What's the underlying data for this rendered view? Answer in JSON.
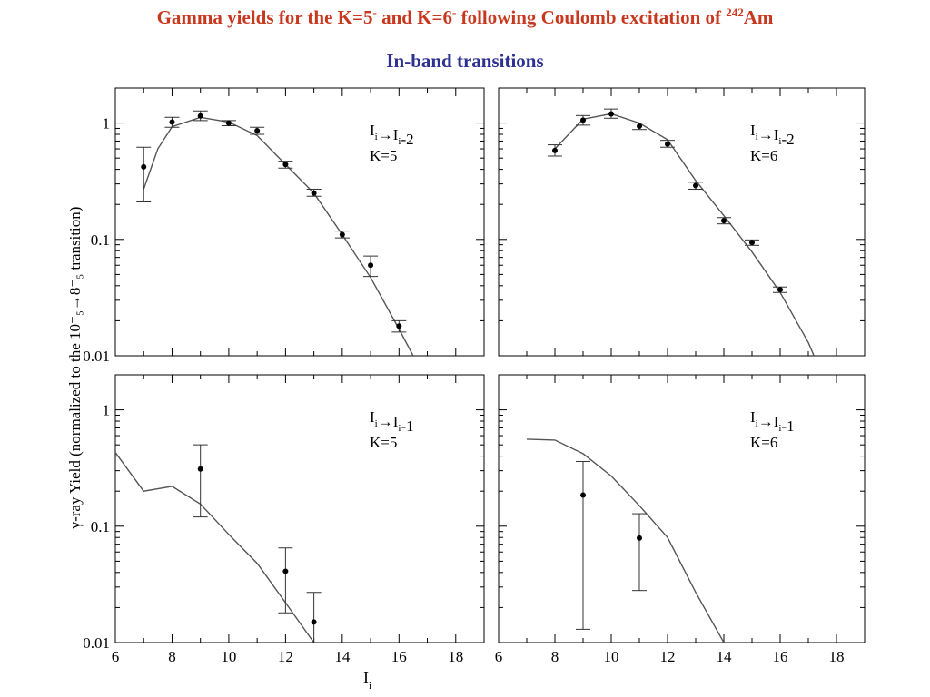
{
  "title": {
    "part1": "Gamma yields for the K=5",
    "sup1": "-",
    "part2": " and K=6",
    "sup2": "-",
    "part3": " following Coulomb excitation of ",
    "sup3": "242",
    "part4": "Am"
  },
  "subtitle": "In-band transitions",
  "axes": {
    "ylabel": "γ-ray Yield (normalized to the 10⁻₅→8⁻₅ transition)",
    "xlabel_main": "I",
    "xlabel_sub": "i",
    "x_ticks": [
      "6",
      "8",
      "10",
      "12",
      "14",
      "16",
      "18"
    ],
    "y_ticks": [
      "0.01",
      "0.1",
      "1"
    ]
  },
  "colors": {
    "title": "#c8381e",
    "subtitle": "#2e3192",
    "line": "#555555",
    "point": "#000000"
  },
  "chart_data": [
    {
      "type": "line",
      "panel": "top-left",
      "label": {
        "line1": "Ii→Ii-2",
        "line2": "K=5"
      },
      "xlim": [
        6,
        19
      ],
      "ylim": [
        0.01,
        2
      ],
      "yscale": "log",
      "theory": {
        "x": [
          7,
          7.5,
          8,
          9,
          10,
          11,
          12,
          13,
          14,
          15,
          16,
          16.5
        ],
        "y": [
          0.27,
          0.6,
          0.93,
          1.12,
          1.02,
          0.78,
          0.44,
          0.25,
          0.11,
          0.047,
          0.017,
          0.01
        ]
      },
      "data": [
        {
          "x": 7,
          "y": 0.42,
          "lo": 0.21,
          "hi": 0.62
        },
        {
          "x": 8,
          "y": 1.02,
          "lo": 0.92,
          "hi": 1.12
        },
        {
          "x": 9,
          "y": 1.15,
          "lo": 1.05,
          "hi": 1.27
        },
        {
          "x": 10,
          "y": 1.0,
          "lo": 0.95,
          "hi": 1.05
        },
        {
          "x": 11,
          "y": 0.86,
          "lo": 0.8,
          "hi": 0.92
        },
        {
          "x": 12,
          "y": 0.44,
          "lo": 0.41,
          "hi": 0.47
        },
        {
          "x": 13,
          "y": 0.25,
          "lo": 0.235,
          "hi": 0.27
        },
        {
          "x": 14,
          "y": 0.11,
          "lo": 0.103,
          "hi": 0.118
        },
        {
          "x": 15,
          "y": 0.06,
          "lo": 0.048,
          "hi": 0.072
        },
        {
          "x": 16,
          "y": 0.018,
          "lo": 0.016,
          "hi": 0.02
        }
      ]
    },
    {
      "type": "line",
      "panel": "top-right",
      "label": {
        "line1": "Ii→Ii-2",
        "line2": "K=6"
      },
      "xlim": [
        6,
        19
      ],
      "ylim": [
        0.01,
        2
      ],
      "yscale": "log",
      "theory": {
        "x": [
          8,
          9,
          10,
          11,
          12,
          13,
          14,
          15,
          16,
          17,
          17.2
        ],
        "y": [
          0.6,
          1.08,
          1.2,
          1.0,
          0.72,
          0.32,
          0.16,
          0.078,
          0.035,
          0.013,
          0.01
        ]
      },
      "data": [
        {
          "x": 8,
          "y": 0.58,
          "lo": 0.52,
          "hi": 0.65
        },
        {
          "x": 9,
          "y": 1.06,
          "lo": 0.96,
          "hi": 1.16
        },
        {
          "x": 10,
          "y": 1.2,
          "lo": 1.1,
          "hi": 1.32
        },
        {
          "x": 11,
          "y": 0.94,
          "lo": 0.88,
          "hi": 1.0
        },
        {
          "x": 12,
          "y": 0.66,
          "lo": 0.62,
          "hi": 0.71
        },
        {
          "x": 13,
          "y": 0.29,
          "lo": 0.27,
          "hi": 0.31
        },
        {
          "x": 14,
          "y": 0.145,
          "lo": 0.136,
          "hi": 0.154
        },
        {
          "x": 15,
          "y": 0.094,
          "lo": 0.089,
          "hi": 0.099
        },
        {
          "x": 16,
          "y": 0.037,
          "lo": 0.035,
          "hi": 0.039
        }
      ]
    },
    {
      "type": "line",
      "panel": "bottom-left",
      "label": {
        "line1": "Ii→Ii-1",
        "line2": "K=5"
      },
      "xlim": [
        6,
        19
      ],
      "ylim": [
        0.01,
        2
      ],
      "yscale": "log",
      "theory": {
        "x": [
          6,
          7,
          8,
          9,
          10,
          11,
          12,
          13
        ],
        "y": [
          0.43,
          0.2,
          0.22,
          0.155,
          0.085,
          0.048,
          0.022,
          0.01
        ]
      },
      "data": [
        {
          "x": 9,
          "y": 0.31,
          "lo": 0.12,
          "hi": 0.5
        },
        {
          "x": 12,
          "y": 0.041,
          "lo": 0.018,
          "hi": 0.065
        },
        {
          "x": 13,
          "y": 0.015,
          "lo": 0.005,
          "hi": 0.027
        }
      ]
    },
    {
      "type": "line",
      "panel": "bottom-right",
      "label": {
        "line1": "Ii→Ii-1",
        "line2": "K=6"
      },
      "xlim": [
        6,
        19
      ],
      "ylim": [
        0.01,
        2
      ],
      "yscale": "log",
      "theory": {
        "x": [
          7,
          8,
          9,
          10,
          11,
          12,
          13,
          14
        ],
        "y": [
          0.56,
          0.55,
          0.42,
          0.27,
          0.15,
          0.08,
          0.027,
          0.01
        ]
      },
      "data": [
        {
          "x": 9,
          "y": 0.185,
          "lo": 0.013,
          "hi": 0.36
        },
        {
          "x": 11,
          "y": 0.079,
          "lo": 0.028,
          "hi": 0.128
        }
      ]
    }
  ]
}
